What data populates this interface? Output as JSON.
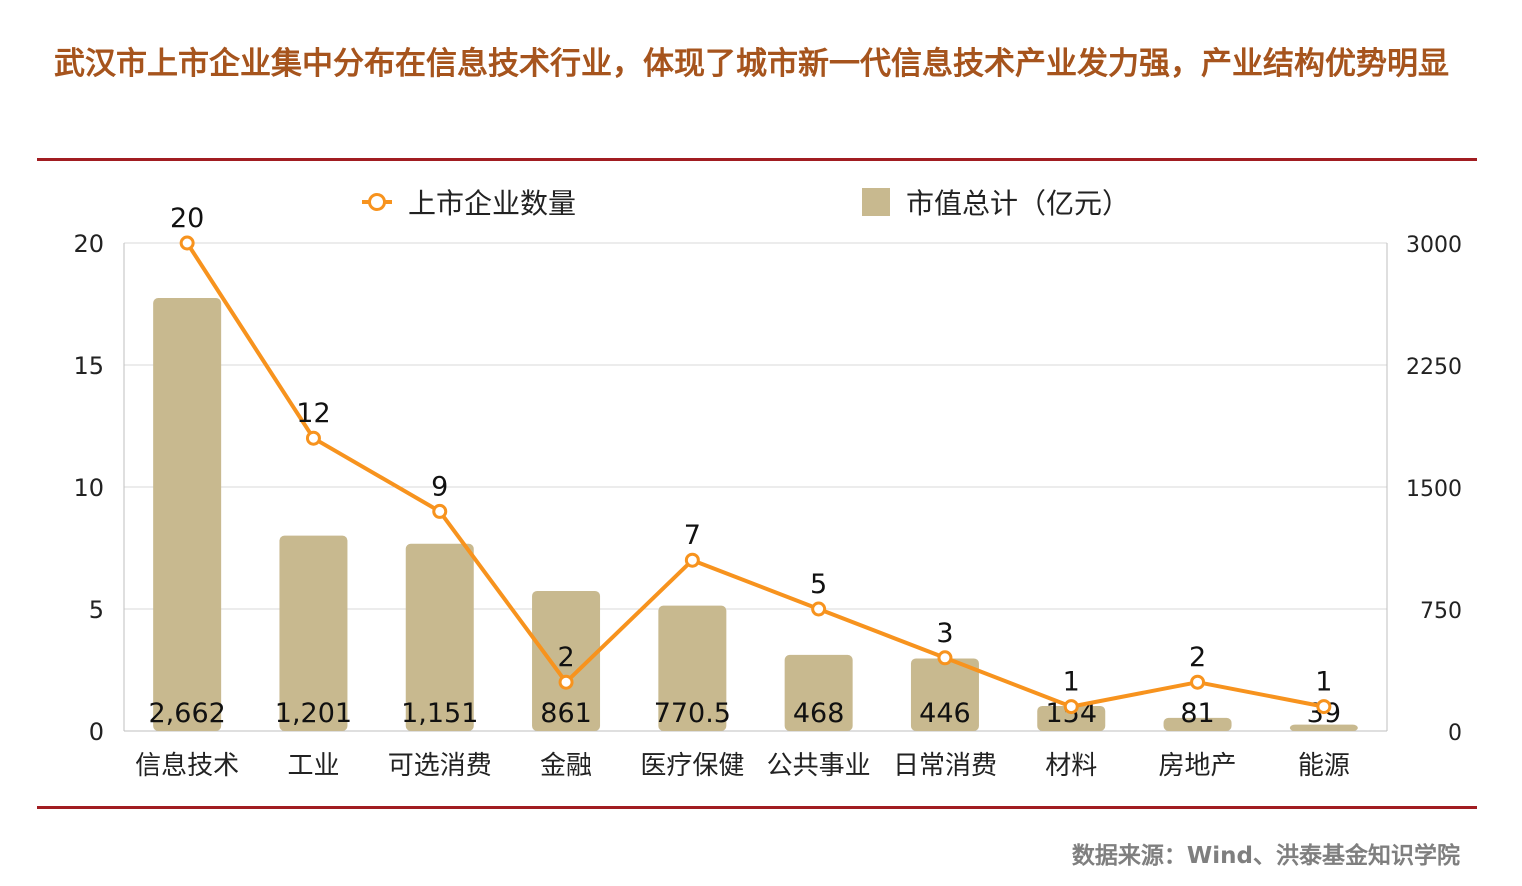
{
  "headline": "武汉市上市企业集中分布在信息技术行业，体现了城市新一代信息技术产业发力强，产业结构优势明显",
  "legend": {
    "line_label": "上市企业数量",
    "bar_label": "市值总计（亿元）"
  },
  "source": "数据来源：Wind、洪泰基金知识学院",
  "colors": {
    "bar": "#c8b98f",
    "line": "#f7931e",
    "headline": "#a6541d",
    "rule": "#a11d21",
    "grid": "#d9d9d9"
  },
  "chart_data": {
    "type": "bar",
    "categories": [
      "信息技术",
      "工业",
      "可选消费",
      "金融",
      "医疗保健",
      "公共事业",
      "日常消费",
      "材料",
      "房地产",
      "能源"
    ],
    "series": [
      {
        "name": "市值总计（亿元）",
        "type": "bar",
        "axis": "right",
        "values": [
          2662,
          1201,
          1151,
          861,
          770.5,
          468,
          446,
          154,
          81,
          39
        ],
        "labels": [
          "2,662",
          "1,201",
          "1,151",
          "861",
          "770.5",
          "468",
          "446",
          "154",
          "81",
          "39"
        ]
      },
      {
        "name": "上市企业数量",
        "type": "line",
        "axis": "left",
        "values": [
          20,
          12,
          9,
          2,
          7,
          5,
          3,
          1,
          2,
          1
        ],
        "labels": [
          "20",
          "12",
          "9",
          "2",
          "7",
          "5",
          "3",
          "1",
          "2",
          "1"
        ]
      }
    ],
    "y_left": {
      "min": 0,
      "max": 20,
      "ticks": [
        "0",
        "5",
        "10",
        "15",
        "20"
      ]
    },
    "y_right": {
      "min": 0,
      "max": 3000,
      "ticks": [
        "0",
        "750",
        "1500",
        "2250",
        "3000"
      ]
    },
    "grid": true,
    "legend_position": "top"
  }
}
